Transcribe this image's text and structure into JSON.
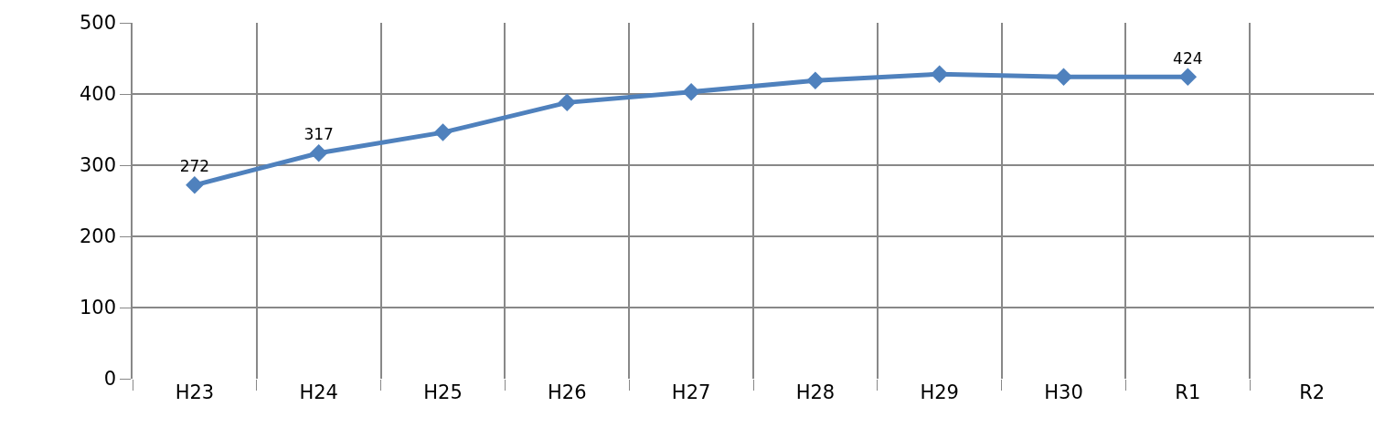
{
  "chart_data": {
    "type": "line",
    "categories": [
      "H23",
      "H24",
      "H25",
      "H26",
      "H27",
      "H28",
      "H29",
      "H30",
      "R1",
      "R2"
    ],
    "series": [
      {
        "color": "#4f81bd",
        "values": [
          272,
          317,
          346,
          388,
          403,
          419,
          428,
          424,
          424,
          null
        ],
        "value_labels": [
          "272",
          "317",
          null,
          null,
          null,
          null,
          null,
          null,
          "424",
          null
        ]
      }
    ],
    "ylim": [
      0,
      500
    ],
    "yticks": [
      0,
      100,
      200,
      300,
      400,
      500
    ],
    "grid": true,
    "marker": "diamond"
  }
}
